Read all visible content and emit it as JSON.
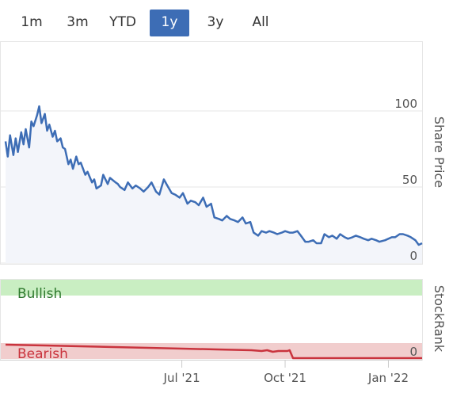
{
  "range_selector": {
    "buttons": [
      "1m",
      "3m",
      "YTD",
      "1y",
      "3y",
      "All"
    ],
    "active": "1y"
  },
  "colors": {
    "price_line": "#3d6db5",
    "price_fill": "#f3f5fa",
    "bullish_band": "#c9eec2",
    "bearish_band": "#f1cdcd",
    "stockrank_line": "#c9333d",
    "bullish_text": "#2f7a2f",
    "bearish_text": "#c9333d"
  },
  "chart_data": [
    {
      "type": "line",
      "ylabel": "Share Price",
      "ylim": [
        0,
        105
      ],
      "yticks": [
        0,
        50,
        100
      ],
      "xlim": [
        "2021-01-25",
        "2022-01-31"
      ],
      "xticks": [
        "Jul '21",
        "Oct '21",
        "Jan '22"
      ],
      "xtick_dates": [
        "2021-07-01",
        "2021-10-01",
        "2022-01-01"
      ],
      "grid": true,
      "series": [
        {
          "dates": [
            "2021-01-25",
            "2021-01-27",
            "2021-01-29",
            "2021-02-01",
            "2021-02-03",
            "2021-02-05",
            "2021-02-08",
            "2021-02-10",
            "2021-02-12",
            "2021-02-15",
            "2021-02-17",
            "2021-02-19",
            "2021-02-22",
            "2021-02-24",
            "2021-02-26",
            "2021-03-01",
            "2021-03-03",
            "2021-03-05",
            "2021-03-08",
            "2021-03-10",
            "2021-03-12",
            "2021-03-15",
            "2021-03-17",
            "2021-03-19",
            "2021-03-22",
            "2021-03-24",
            "2021-03-26",
            "2021-03-29",
            "2021-03-31",
            "2021-04-02",
            "2021-04-06",
            "2021-04-08",
            "2021-04-12",
            "2021-04-14",
            "2021-04-16",
            "2021-04-20",
            "2021-04-22",
            "2021-04-26",
            "2021-04-28",
            "2021-05-03",
            "2021-05-05",
            "2021-05-07",
            "2021-05-11",
            "2021-05-14",
            "2021-05-18",
            "2021-05-21",
            "2021-05-25",
            "2021-05-28",
            "2021-06-01",
            "2021-06-04",
            "2021-06-08",
            "2021-06-11",
            "2021-06-15",
            "2021-06-18",
            "2021-06-22",
            "2021-06-25",
            "2021-06-29",
            "2021-07-02",
            "2021-07-06",
            "2021-07-09",
            "2021-07-13",
            "2021-07-16",
            "2021-07-20",
            "2021-07-23",
            "2021-07-27",
            "2021-07-30",
            "2021-08-03",
            "2021-08-06",
            "2021-08-10",
            "2021-08-13",
            "2021-08-17",
            "2021-08-20",
            "2021-08-24",
            "2021-08-27",
            "2021-08-31",
            "2021-09-03",
            "2021-09-07",
            "2021-09-10",
            "2021-09-14",
            "2021-09-17",
            "2021-09-21",
            "2021-09-24",
            "2021-09-28",
            "2021-10-01",
            "2021-10-05",
            "2021-10-08",
            "2021-10-12",
            "2021-10-15",
            "2021-10-19",
            "2021-10-22",
            "2021-10-26",
            "2021-10-29",
            "2021-11-02",
            "2021-11-05",
            "2021-11-09",
            "2021-11-12",
            "2021-11-16",
            "2021-11-19",
            "2021-11-23",
            "2021-11-26",
            "2021-11-30",
            "2021-12-03",
            "2021-12-07",
            "2021-12-10",
            "2021-12-14",
            "2021-12-17",
            "2021-12-21",
            "2021-12-24",
            "2021-12-29",
            "2022-01-04",
            "2022-01-07",
            "2022-01-11",
            "2022-01-14",
            "2022-01-18",
            "2022-01-21",
            "2022-01-25",
            "2022-01-28",
            "2022-01-31"
          ],
          "values": [
            80,
            70,
            84,
            71,
            82,
            73,
            86,
            78,
            88,
            76,
            93,
            90,
            97,
            103,
            92,
            98,
            87,
            91,
            83,
            87,
            80,
            82,
            76,
            75,
            65,
            68,
            62,
            70,
            65,
            66,
            58,
            60,
            53,
            55,
            49,
            51,
            58,
            52,
            56,
            53,
            52,
            50,
            48,
            53,
            49,
            51,
            49,
            47,
            50,
            53,
            47,
            45,
            55,
            51,
            46,
            45,
            43,
            46,
            39,
            41,
            40,
            38,
            43,
            37,
            39,
            30,
            29,
            28,
            31,
            29,
            28,
            27,
            30,
            26,
            27,
            20,
            18,
            21,
            20,
            21,
            20,
            19,
            20,
            21,
            20,
            20,
            21,
            18,
            14,
            14,
            15,
            13,
            13,
            19,
            17,
            18,
            16,
            19,
            17,
            16,
            17,
            18,
            17,
            16,
            15,
            16,
            15,
            14,
            15,
            17,
            17,
            19,
            19,
            18,
            17,
            15,
            12,
            13
          ]
        }
      ]
    },
    {
      "type": "area",
      "ylabel": "StockRank",
      "ylim": [
        0,
        100
      ],
      "yticks": [
        0
      ],
      "bands": [
        {
          "label": "Bullish",
          "from": 80,
          "to": 100
        },
        {
          "label": "Bearish",
          "from": 0,
          "to": 20
        }
      ],
      "series": [
        {
          "dates": [
            "2021-01-25",
            "2021-03-01",
            "2021-04-01",
            "2021-05-01",
            "2021-06-01",
            "2021-07-01",
            "2021-08-01",
            "2021-09-01",
            "2021-09-10",
            "2021-09-15",
            "2021-09-20",
            "2021-09-25",
            "2021-10-01",
            "2021-10-03",
            "2021-10-05",
            "2021-10-08",
            "2022-01-31"
          ],
          "values": [
            18,
            17,
            16,
            15,
            14,
            13,
            12,
            11,
            10,
            11,
            9,
            10,
            10,
            10,
            11,
            1,
            1
          ]
        }
      ]
    }
  ]
}
